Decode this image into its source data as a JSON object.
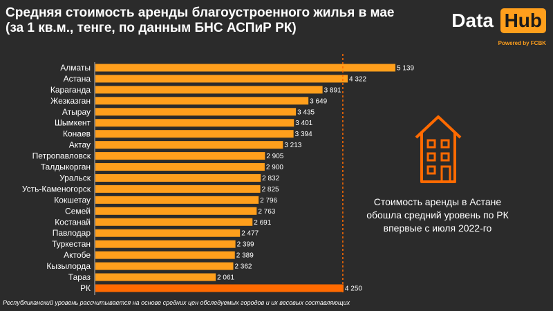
{
  "header": {
    "title_line1": "Средняя стоимость аренды благоустроенного жилья в мае",
    "title_line2": "(за 1 кв.м., тенге, по данным БНС АСПиР РК)"
  },
  "logo": {
    "data_text": "Data",
    "hub_text": "Hub",
    "powered_text": "Powered by FCBK"
  },
  "annotation": {
    "line1": "Стоимость аренды в Астане",
    "line2": "обошла средний уровень по РК",
    "line3": "впервые с июля 2022-го"
  },
  "footnote": "Республиканский уровень рассчитывается на основе средних цен обследуемых городов и их весовых составляющих",
  "colors": {
    "background": "#2b2b2b",
    "bar": "#ff9f1c",
    "highlight_bar": "#ff6a00",
    "reference_line": "#ff6a00",
    "icon": "#ff6a00"
  },
  "chart_data": {
    "type": "bar",
    "orientation": "horizontal",
    "title": "Средняя стоимость аренды благоустроенного жилья в мае (за 1 кв.м., тенге, по данным БНС АСПиР РК)",
    "xlabel": "",
    "ylabel": "",
    "xlim": [
      0,
      5139
    ],
    "categories": [
      "Алматы",
      "Астана",
      "Караганда",
      "Жезказган",
      "Атырау",
      "Шымкент",
      "Конаев",
      "Актау",
      "Петропавловск",
      "Талдыкорган",
      "Уральск",
      "Усть-Каменогорск",
      "Кокшетау",
      "Семей",
      "Костанай",
      "Павлодар",
      "Туркестан",
      "Актобе",
      "Кызылорда",
      "Тараз",
      "РК"
    ],
    "values": [
      5139,
      4322,
      3891,
      3649,
      3435,
      3401,
      3394,
      3213,
      2905,
      2900,
      2832,
      2825,
      2796,
      2763,
      2691,
      2477,
      2399,
      2389,
      2362,
      2061,
      4250
    ],
    "value_labels": [
      "5 139",
      "4 322",
      "3 891",
      "3 649",
      "3 435",
      "3 401",
      "3 394",
      "3 213",
      "2 905",
      "2 900",
      "2 832",
      "2 825",
      "2 796",
      "2 763",
      "2 691",
      "2 477",
      "2 399",
      "2 389",
      "2 362",
      "2 061",
      "4 250"
    ],
    "highlight": "РК",
    "reference_line_value": 4250,
    "grid": false,
    "legend": "none"
  }
}
